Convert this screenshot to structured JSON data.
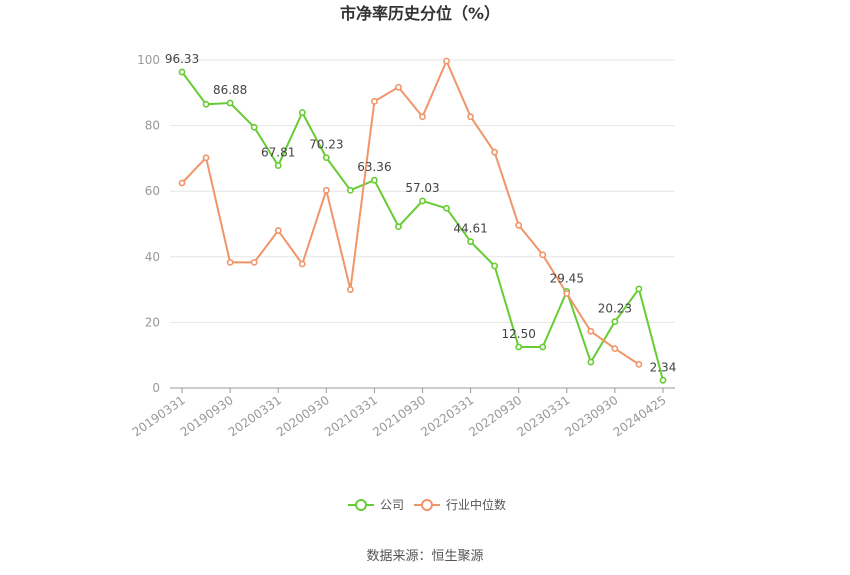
{
  "chart_data": {
    "type": "line",
    "title": "市净率历史分位（%）",
    "source": "数据来源：恒生聚源",
    "ylim": [
      0,
      100
    ],
    "yticks": [
      "0",
      "20",
      "40",
      "60",
      "80",
      "100"
    ],
    "x": [
      "20190331",
      "20190630",
      "20190930",
      "20191231",
      "20200331",
      "20200630",
      "20200930",
      "20201231",
      "20210331",
      "20210630",
      "20210930",
      "20211231",
      "20220331",
      "20220630",
      "20220930",
      "20221231",
      "20230331",
      "20230630",
      "20230930",
      "20231231",
      "20240425"
    ],
    "xticks": [
      "20190331",
      "20190930",
      "20200331",
      "20200930",
      "20210331",
      "20210930",
      "20220331",
      "20220930",
      "20230331",
      "20230930",
      "20240425"
    ],
    "series": [
      {
        "name": "公司",
        "color": "#66cc33",
        "values": [
          96.33,
          86.5,
          86.88,
          79.5,
          67.81,
          84.0,
          70.23,
          60.3,
          63.36,
          49.2,
          57.03,
          54.8,
          44.61,
          37.2,
          12.5,
          12.5,
          29.45,
          7.9,
          20.23,
          30.2,
          2.34
        ],
        "labels": [
          "96.33",
          "",
          "86.88",
          "",
          "67.81",
          "",
          "70.23",
          "",
          "63.36",
          "",
          "57.03",
          "",
          "44.61",
          "",
          "12.50",
          "",
          "29.45",
          "",
          "20.23",
          "",
          "2.34"
        ]
      },
      {
        "name": "行业中位数",
        "color": "#f0956a",
        "values": [
          62.5,
          70.2,
          38.3,
          38.3,
          48.0,
          37.8,
          60.3,
          30.0,
          87.4,
          91.7,
          82.7,
          99.7,
          82.7,
          71.9,
          49.6,
          40.6,
          28.8,
          17.3,
          12.0,
          7.2,
          null
        ]
      }
    ],
    "legend_position": "bottom-center",
    "grid": true
  }
}
